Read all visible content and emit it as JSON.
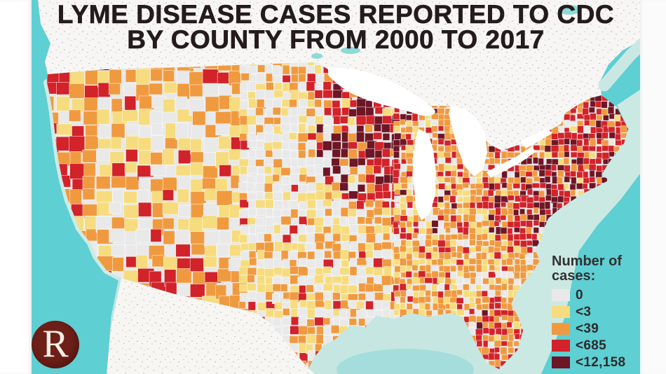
{
  "title": {
    "line1": "LYME DISEASE CASES REPORTED TO CDC",
    "line2": "BY COUNTY FROM 2000 TO 2017"
  },
  "legend": {
    "heading_line1": "Number of",
    "heading_line2": "cases:",
    "items": [
      {
        "label": "0",
        "color": "#e9e9e9"
      },
      {
        "label": "<3",
        "color": "#f6dc7e"
      },
      {
        "label": "<39",
        "color": "#f09a40"
      },
      {
        "label": "<685",
        "color": "#d2222a"
      },
      {
        "label": "<12,158",
        "color": "#6d1626"
      }
    ]
  },
  "logo": {
    "letter": "R",
    "background_color": "#6e1f18"
  },
  "chart_data": {
    "type": "choropleth",
    "geography": "United States, county level",
    "title": "Lyme disease cases reported to CDC by county from 2000 to 2017",
    "legend_title": "Number of cases:",
    "classes": [
      {
        "label": "0",
        "color": "#e9e9e9"
      },
      {
        "label": "<3",
        "color": "#f6dc7e"
      },
      {
        "label": "<39",
        "color": "#f09a40"
      },
      {
        "label": "<685",
        "color": "#d2222a"
      },
      {
        "label": "<12,158",
        "color": "#6d1626"
      }
    ],
    "legend_position": "bottom-right",
    "observed_patterns": [
      "Highest-case (dark maroon) clusters in the Northeast: Pennsylvania, New York, New Jersey, Connecticut, Massachusetts, and down to Virginia",
      "Second dark cluster in the Upper Midwest: Minnesota and Wisconsin",
      "Red counties along the Pacific coast (Washington, Oregon, northern and southern California coast), Maine, and Florida",
      "Great Plains counties mostly 0 or <3 cases (gray / pale yellow)",
      "South and interior West mostly <39 cases (orange) with scattered yellow and gray"
    ]
  }
}
